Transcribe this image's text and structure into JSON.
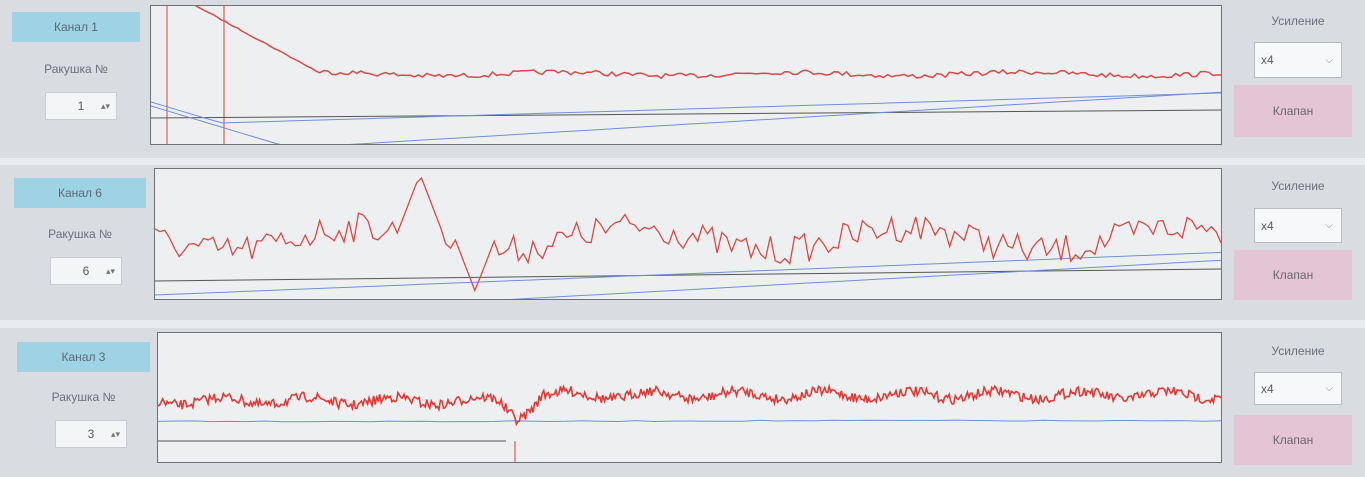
{
  "panels": [
    {
      "channel": "Канал 1",
      "shell_label": "Ракушка №",
      "shell_number": 1,
      "gain_label": "Усиление",
      "gain_value": "x4",
      "valve_button": "Клапан"
    },
    {
      "channel": "Канал 6",
      "shell_label": "Ракушка №",
      "shell_number": 6,
      "gain_label": "Усиление",
      "gain_value": "x4",
      "valve_button": "Клапан"
    },
    {
      "channel": "Канал 3",
      "shell_label": "Ракушка №",
      "shell_number": 3,
      "gain_label": "Усиление",
      "gain_value": "x4",
      "valve_button": "Клапан"
    }
  ]
}
